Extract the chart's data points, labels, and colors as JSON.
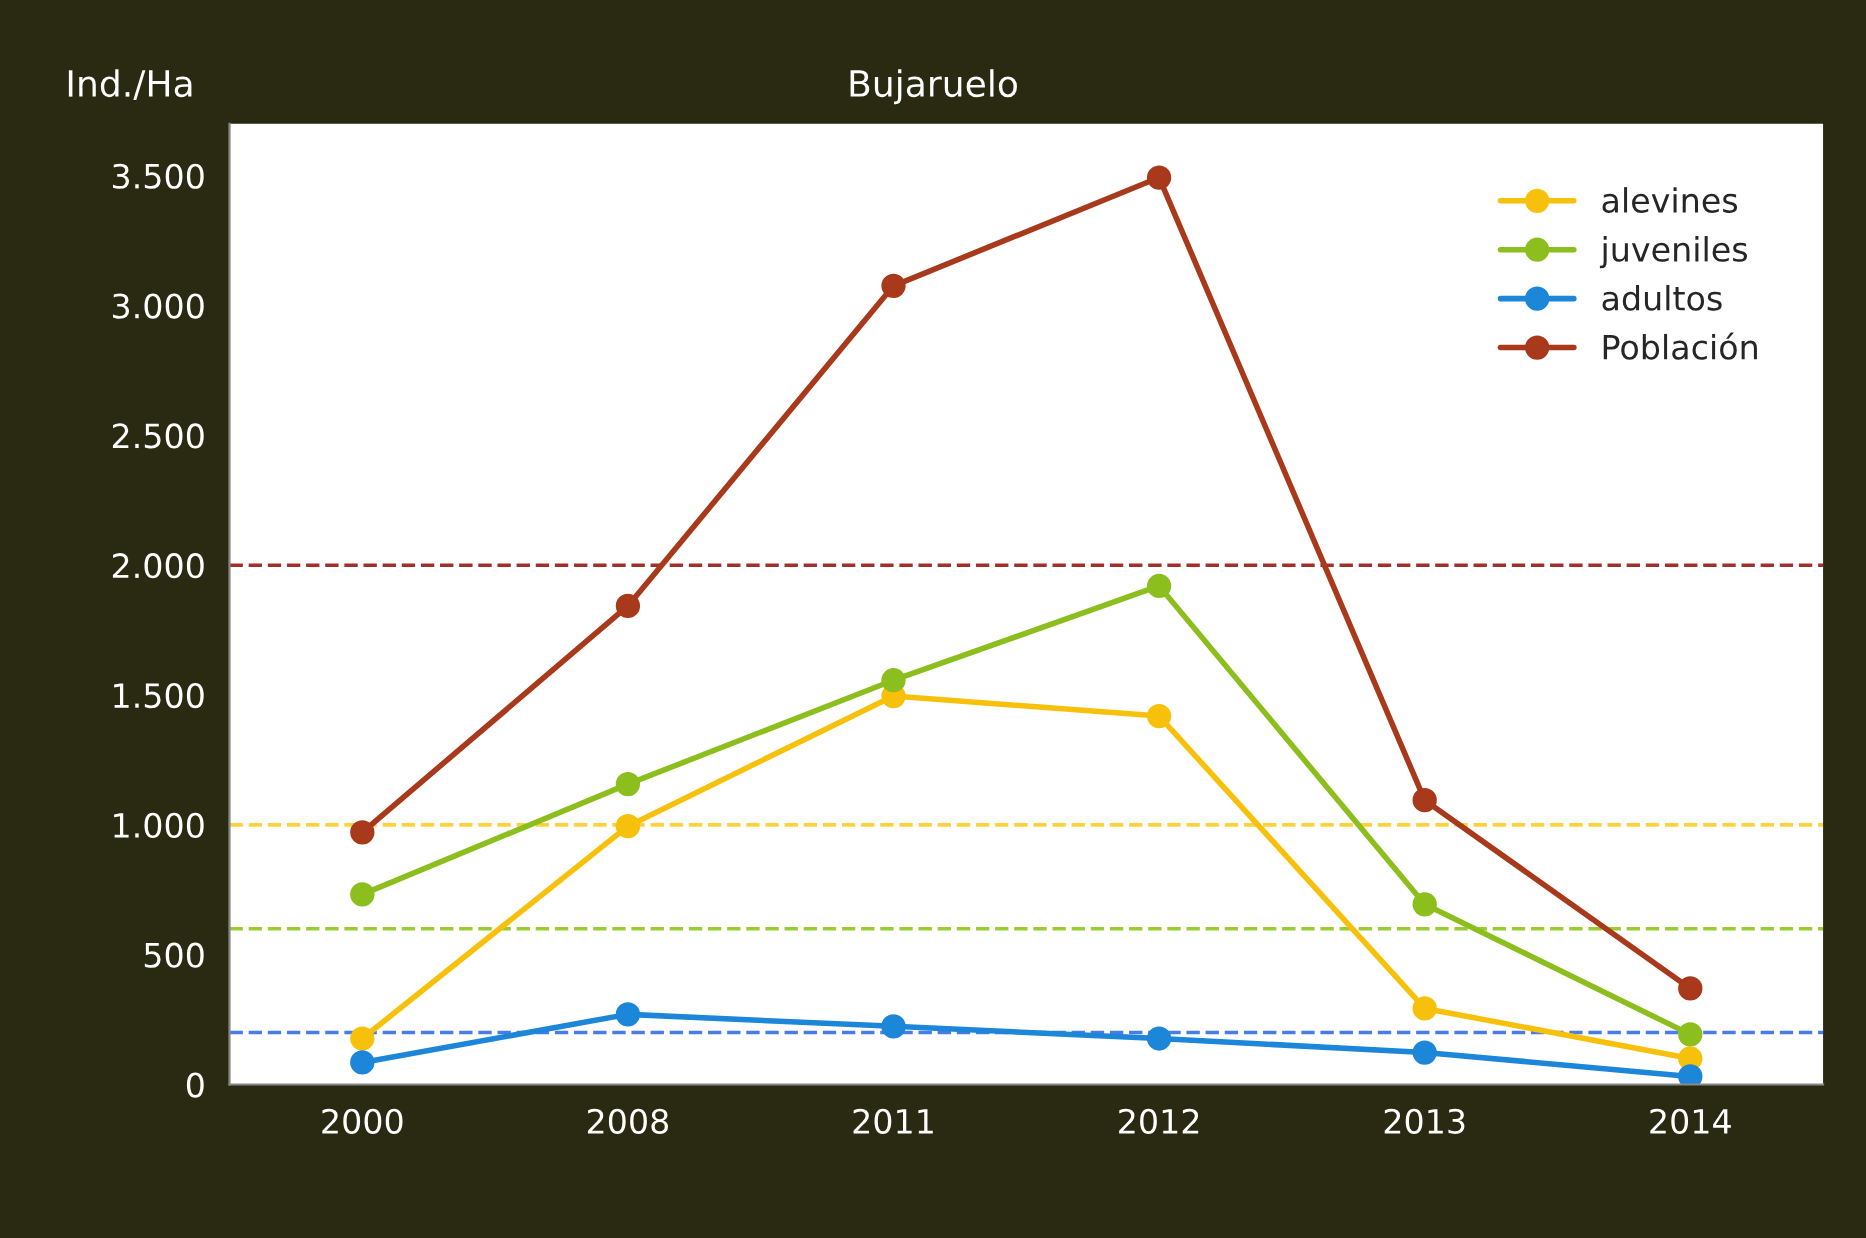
{
  "chart_data": {
    "type": "line",
    "title": "Bujaruelo",
    "ylabel": "Ind./Ha",
    "categories": [
      "2000",
      "2008",
      "2011",
      "2012",
      "2013",
      "2014"
    ],
    "series": [
      {
        "name": "alevines",
        "color": "#f7c00a",
        "values": [
          177,
          995,
          1496,
          1419,
          293,
          100
        ]
      },
      {
        "name": "juveniles",
        "color": "#8cbf1e",
        "values": [
          732,
          1157,
          1557,
          1920,
          694,
          193
        ]
      },
      {
        "name": "adultos",
        "color": "#1c86d8",
        "values": [
          85,
          270,
          224,
          177,
          123,
          31
        ]
      },
      {
        "name": "Población",
        "color": "#a8391a",
        "values": [
          971,
          1843,
          3076,
          3493,
          1095,
          370
        ]
      }
    ],
    "ylim": [
      0,
      3700
    ],
    "yticks": [
      {
        "value": 0,
        "label": "0"
      },
      {
        "value": 500,
        "label": "500"
      },
      {
        "value": 1000,
        "label": "1.000"
      },
      {
        "value": 1500,
        "label": "1.500"
      },
      {
        "value": 2000,
        "label": "2.000"
      },
      {
        "value": 2500,
        "label": "2.500"
      },
      {
        "value": 3000,
        "label": "3.000"
      },
      {
        "value": 3500,
        "label": "3.500"
      }
    ],
    "ref_lines": [
      {
        "axis": "y",
        "value": 2000,
        "color": "#a0302a",
        "line_style": "dashed"
      },
      {
        "axis": "y",
        "value": 1000,
        "color": "#ffd23a",
        "line_style": "dashed"
      },
      {
        "axis": "y",
        "value": 600,
        "color": "#9acd32",
        "line_style": "dashed"
      },
      {
        "axis": "y",
        "value": 200,
        "color": "#4a7ce8",
        "line_style": "dashed"
      }
    ],
    "marker": "circle",
    "line_style": "solid",
    "grid": false,
    "legend": "top right"
  }
}
